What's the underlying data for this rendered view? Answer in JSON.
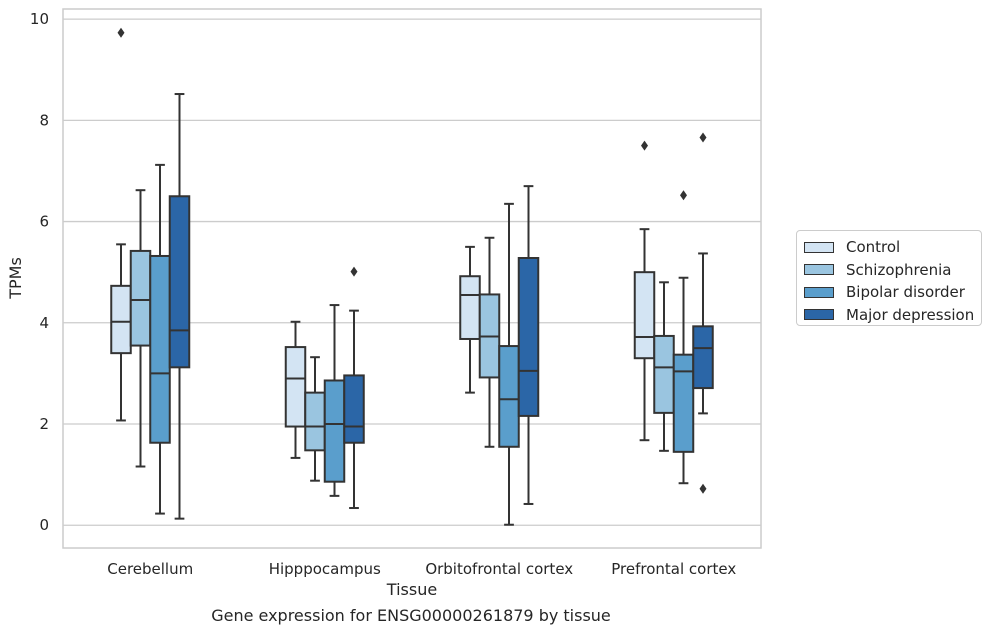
{
  "caption": "Gene expression for ENSG00000261879 by tissue",
  "chart_data": {
    "type": "box",
    "xlabel": "Tissue",
    "ylabel": "TPMs",
    "ylim": [
      -0.45,
      10.2
    ],
    "yticks": [
      0,
      2,
      4,
      6,
      8,
      10
    ],
    "grid": "horizontal",
    "legend_position": "right",
    "categories": [
      "Cerebellum",
      "Hipppocampus",
      "Orbitofrontal cortex",
      "Prefrontal cortex"
    ],
    "series": [
      {
        "name": "Control",
        "color": "#d3e4f3",
        "boxes": [
          {
            "whislo": 2.07,
            "q1": 3.4,
            "med": 4.02,
            "q3": 4.73,
            "whishi": 5.55,
            "fliers": [
              9.73
            ]
          },
          {
            "whislo": 1.33,
            "q1": 1.95,
            "med": 2.9,
            "q3": 3.52,
            "whishi": 4.02,
            "fliers": []
          },
          {
            "whislo": 2.62,
            "q1": 3.68,
            "med": 4.55,
            "q3": 4.92,
            "whishi": 5.5,
            "fliers": []
          },
          {
            "whislo": 1.68,
            "q1": 3.3,
            "med": 3.72,
            "q3": 5.0,
            "whishi": 5.85,
            "fliers": [
              7.5
            ]
          }
        ]
      },
      {
        "name": "Schizophrenia",
        "color": "#9ac5e0",
        "boxes": [
          {
            "whislo": 1.16,
            "q1": 3.55,
            "med": 4.45,
            "q3": 5.42,
            "whishi": 6.62,
            "fliers": []
          },
          {
            "whislo": 0.88,
            "q1": 1.48,
            "med": 1.95,
            "q3": 2.62,
            "whishi": 3.32,
            "fliers": []
          },
          {
            "whislo": 1.55,
            "q1": 2.92,
            "med": 3.73,
            "q3": 4.56,
            "whishi": 5.68,
            "fliers": []
          },
          {
            "whislo": 1.47,
            "q1": 2.22,
            "med": 3.12,
            "q3": 3.74,
            "whishi": 4.8,
            "fliers": []
          }
        ]
      },
      {
        "name": "Bipolar disorder",
        "color": "#5a9ecc",
        "boxes": [
          {
            "whislo": 0.23,
            "q1": 1.63,
            "med": 3.0,
            "q3": 5.32,
            "whishi": 7.12,
            "fliers": []
          },
          {
            "whislo": 0.58,
            "q1": 0.86,
            "med": 2.0,
            "q3": 2.86,
            "whishi": 4.35,
            "fliers": []
          },
          {
            "whislo": 0.01,
            "q1": 1.55,
            "med": 2.49,
            "q3": 3.54,
            "whishi": 6.35,
            "fliers": []
          },
          {
            "whislo": 0.83,
            "q1": 1.45,
            "med": 3.04,
            "q3": 3.37,
            "whishi": 4.89,
            "fliers": [
              6.52
            ]
          }
        ]
      },
      {
        "name": "Major depression",
        "color": "#2b66a7",
        "boxes": [
          {
            "whislo": 0.13,
            "q1": 3.12,
            "med": 3.85,
            "q3": 6.5,
            "whishi": 8.52,
            "fliers": []
          },
          {
            "whislo": 0.34,
            "q1": 1.63,
            "med": 1.95,
            "q3": 2.96,
            "whishi": 4.24,
            "fliers": [
              5.01
            ]
          },
          {
            "whislo": 0.42,
            "q1": 2.16,
            "med": 3.05,
            "q3": 5.28,
            "whishi": 6.7,
            "fliers": []
          },
          {
            "whislo": 2.21,
            "q1": 2.71,
            "med": 3.5,
            "q3": 3.93,
            "whishi": 5.37,
            "fliers": [
              7.66,
              0.72
            ]
          }
        ]
      }
    ]
  }
}
